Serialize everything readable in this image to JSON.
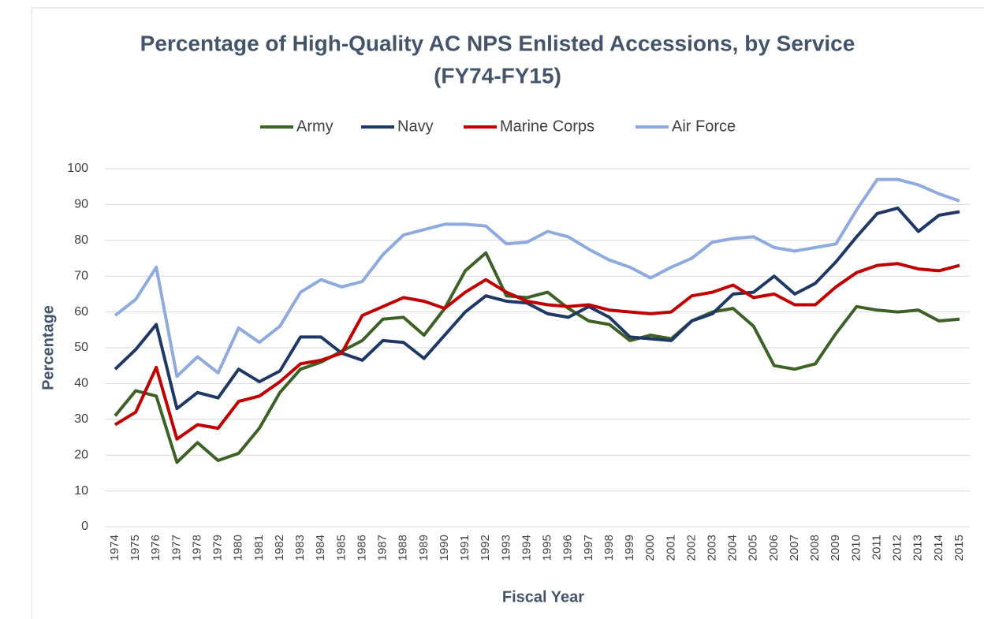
{
  "chart_data": {
    "type": "line",
    "title": [
      "Percentage of High-Quality AC NPS Enlisted Accessions, by Service",
      "(FY74-FY15)"
    ],
    "x_label": "Fiscal Year",
    "y_label": "Percentage",
    "categories": [
      "1974",
      "1975",
      "1976",
      "1977",
      "1978",
      "1979",
      "1980",
      "1981",
      "1982",
      "1983",
      "1984",
      "1985",
      "1986",
      "1987",
      "1988",
      "1989",
      "1990",
      "1991",
      "1992",
      "1993",
      "1994",
      "1995",
      "1996",
      "1997",
      "1998",
      "1999",
      "2000",
      "2001",
      "2002",
      "2003",
      "2004",
      "2005",
      "2006",
      "2007",
      "2008",
      "2009",
      "2010",
      "2011",
      "2012",
      "2013",
      "2014",
      "2015"
    ],
    "series": [
      {
        "name": "Army",
        "color": "#3e6128",
        "values": [
          31,
          38,
          36.5,
          18,
          23.5,
          18.5,
          20.5,
          27.5,
          37.5,
          44,
          46,
          49,
          52,
          58,
          58.5,
          53.5,
          61,
          71.5,
          76.5,
          64.5,
          64,
          65.5,
          61,
          57.5,
          56.5,
          52,
          53.5,
          52.5,
          57.5,
          60,
          61,
          56,
          45,
          44,
          45.5,
          54,
          61.5,
          60.5,
          60,
          60.5,
          57.5,
          58
        ]
      },
      {
        "name": "Navy",
        "color": "#1f3864",
        "values": [
          44,
          49.5,
          56.5,
          33,
          37.5,
          36,
          44,
          40.5,
          43.5,
          53,
          53,
          48.5,
          46.5,
          52,
          51.5,
          47,
          53.5,
          60,
          64.5,
          63,
          62.5,
          59.5,
          58.5,
          61.5,
          58.5,
          53,
          52.5,
          52,
          57.5,
          59.5,
          65,
          65.5,
          70,
          65,
          68,
          74,
          81,
          87.5,
          89,
          82.5,
          87,
          88
        ]
      },
      {
        "name": "Marine Corps",
        "color": "#c00000",
        "values": [
          28.5,
          32,
          44.5,
          24.5,
          28.5,
          27.5,
          35,
          36.5,
          40.5,
          45.5,
          46.5,
          48.5,
          59,
          61.5,
          64,
          63,
          61,
          65.5,
          69,
          65.5,
          63,
          62,
          61.5,
          62,
          60.5,
          60,
          59.5,
          60,
          64.5,
          65.5,
          67.5,
          64,
          65,
          62,
          62,
          67,
          71,
          73,
          73.5,
          72,
          71.5,
          73
        ]
      },
      {
        "name": "Air Force",
        "color": "#8faadc",
        "values": [
          59,
          63.5,
          72.5,
          42,
          47.5,
          43,
          55.5,
          51.5,
          56,
          65.5,
          69,
          67,
          68.5,
          76,
          81.5,
          83,
          84.5,
          84.5,
          84,
          79,
          79.5,
          82.5,
          81,
          77.5,
          74.5,
          72.5,
          69.5,
          72.5,
          75,
          79.5,
          80.5,
          81,
          78,
          77,
          78,
          79,
          88.5,
          97,
          97,
          95.5,
          93,
          91
        ]
      }
    ],
    "ylim": [
      0,
      100
    ],
    "yticks": [
      0,
      10,
      20,
      30,
      40,
      50,
      60,
      70,
      80,
      90,
      100
    ],
    "grid": true,
    "legend": "top"
  }
}
